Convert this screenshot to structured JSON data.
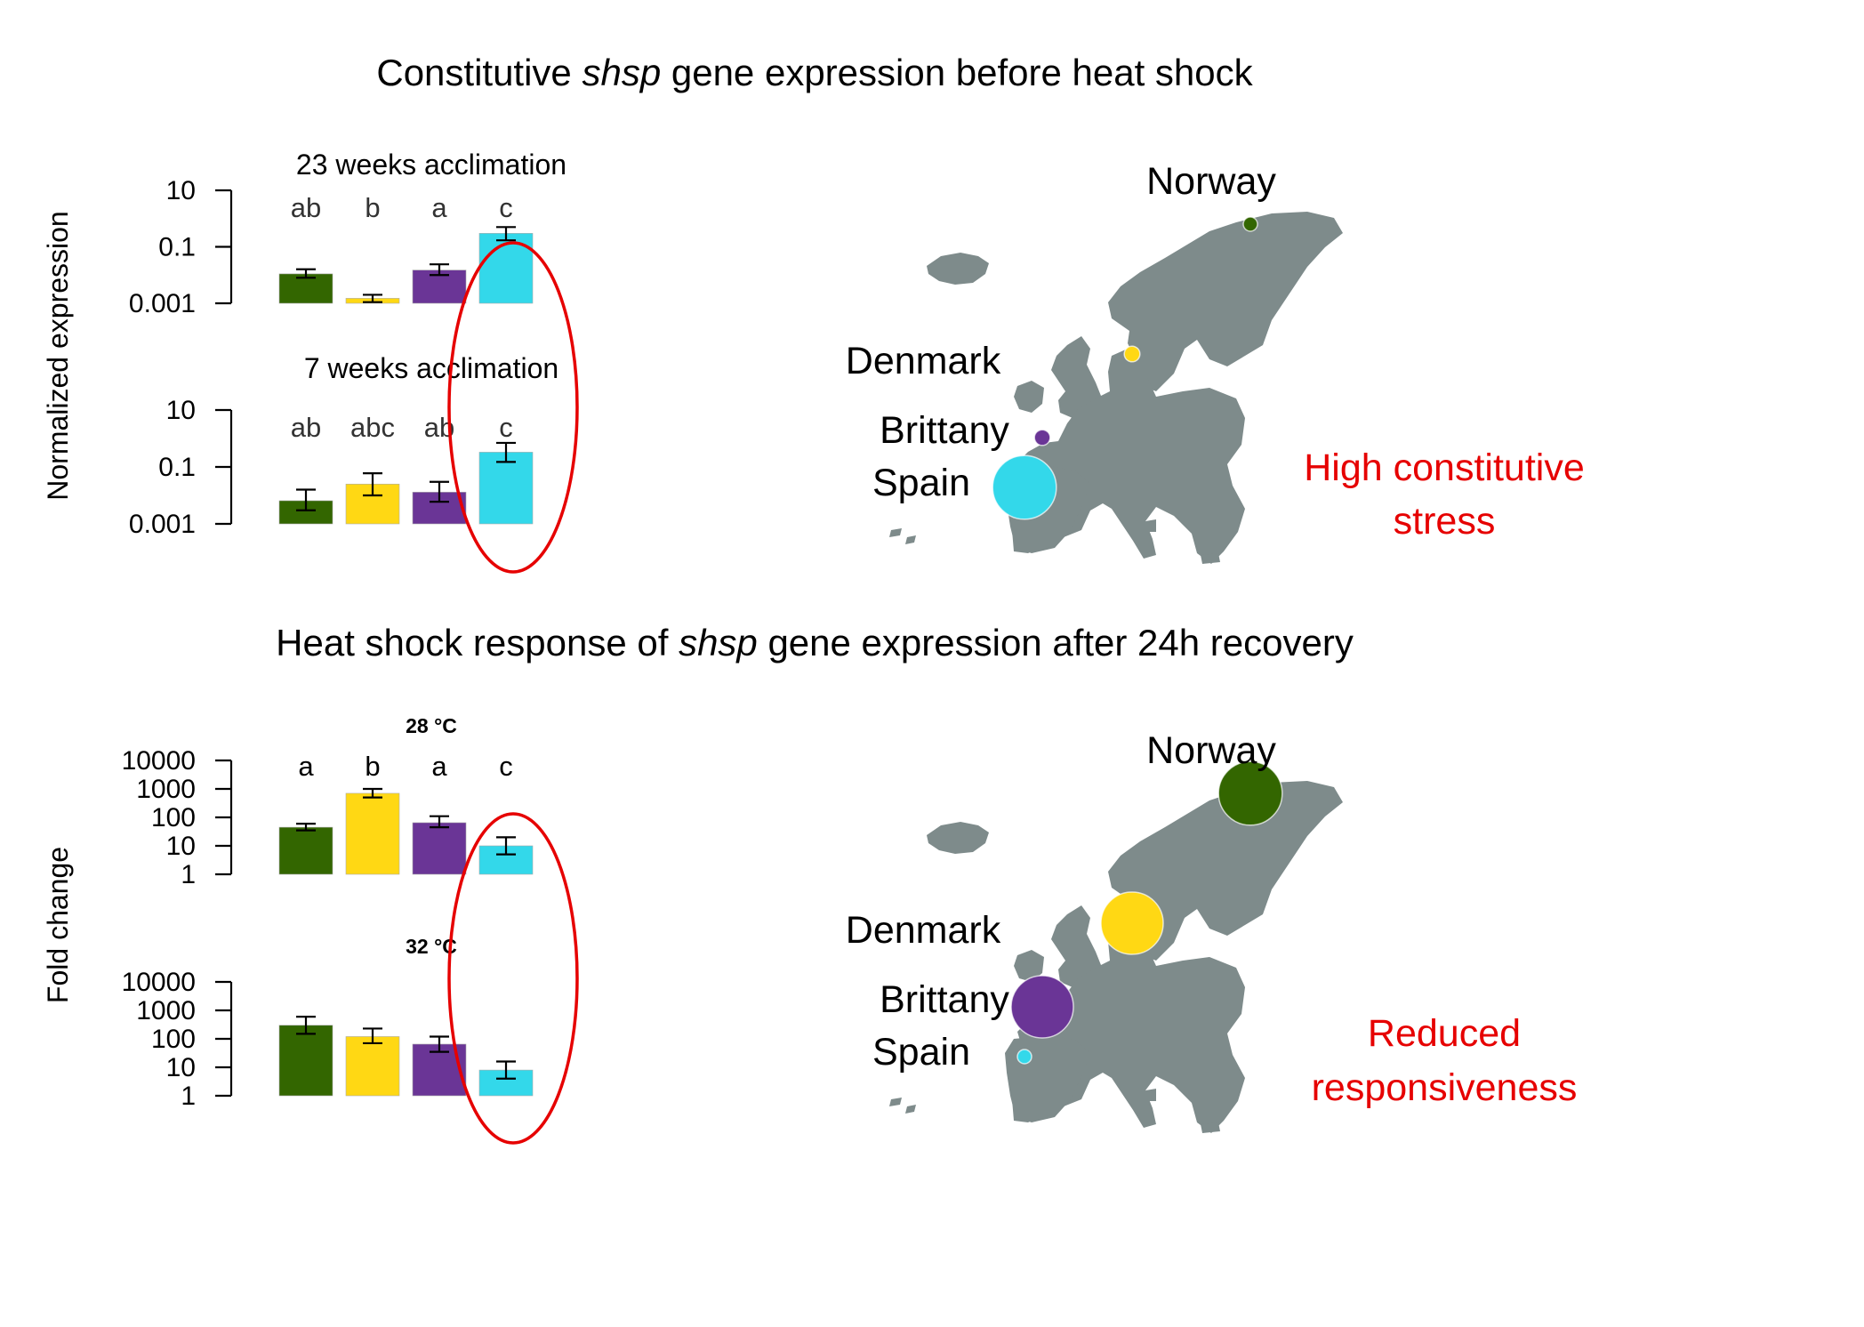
{
  "titles": {
    "top_pre": "Constitutive ",
    "top_italic": "shsp",
    "top_post": " gene expression before heat shock",
    "bottom_pre": "Heat shock response of ",
    "bottom_italic": "shsp",
    "bottom_post": " gene expression after 24h recovery"
  },
  "ylabels": {
    "top": "Normalized expression",
    "bottom": "Fold change"
  },
  "colors": {
    "Norway": "#336600",
    "Denmark": "#ffd814",
    "Brittany": "#6a3596",
    "Spain": "#33d8ea",
    "highlight": "#e60000",
    "map_land": "#7e8b8b"
  },
  "populations": [
    "Norway",
    "Denmark",
    "Brittany",
    "Spain"
  ],
  "annotations": {
    "top_line1": "High constitutive",
    "top_line2": "stress",
    "bottom_line1": "Reduced",
    "bottom_line2": "responsiveness"
  },
  "map_labels": {
    "norway": "Norway",
    "denmark": "Denmark",
    "brittany": "Brittany",
    "spain": "Spain"
  },
  "map_bubbles": {
    "top": {
      "Norway": 1,
      "Denmark": 1.1,
      "Brittany": 1.1,
      "Spain": 3.6
    },
    "bottom": {
      "Norway": 3.6,
      "Denmark": 3.5,
      "Brittany": 3.5,
      "Spain": 1
    }
  },
  "chart_data": [
    {
      "type": "bar",
      "title": "23 weeks acclimation",
      "categories": [
        "Norway",
        "Denmark",
        "Brittany",
        "Spain"
      ],
      "values": [
        0.011,
        0.0015,
        0.015,
        0.3
      ],
      "error_low": [
        0.008,
        0.0011,
        0.01,
        0.17
      ],
      "error_high": [
        0.016,
        0.002,
        0.024,
        0.5
      ],
      "letters": [
        "ab",
        "b",
        "a",
        "c"
      ],
      "yscale": "log",
      "ylim": [
        0.001,
        10
      ],
      "yticks": [
        "10",
        "0.1",
        "0.001"
      ],
      "ylabel": "Normalized expression"
    },
    {
      "type": "bar",
      "title": "7 weeks acclimation",
      "categories": [
        "Norway",
        "Denmark",
        "Brittany",
        "Spain"
      ],
      "values": [
        0.0065,
        0.025,
        0.013,
        0.33
      ],
      "error_low": [
        0.003,
        0.01,
        0.006,
        0.15
      ],
      "error_high": [
        0.016,
        0.06,
        0.03,
        0.7
      ],
      "letters": [
        "ab",
        "abc",
        "ab",
        "c"
      ],
      "yscale": "log",
      "ylim": [
        0.001,
        10
      ],
      "yticks": [
        "10",
        "0.1",
        "0.001"
      ],
      "ylabel": "Normalized expression"
    },
    {
      "type": "bar",
      "title": "28 °C",
      "categories": [
        "Norway",
        "Denmark",
        "Brittany",
        "Spain"
      ],
      "values": [
        45,
        700,
        65,
        10
      ],
      "error_low": [
        35,
        500,
        45,
        5
      ],
      "error_high": [
        60,
        1000,
        110,
        20
      ],
      "letters": [
        "a",
        "b",
        "a",
        "c"
      ],
      "yscale": "log",
      "ylim": [
        1,
        10000
      ],
      "yticks": [
        "10000",
        "1000",
        "100",
        "10",
        "1"
      ],
      "ylabel": "Fold change"
    },
    {
      "type": "bar",
      "title": "32 °C",
      "categories": [
        "Norway",
        "Denmark",
        "Brittany",
        "Spain"
      ],
      "values": [
        300,
        120,
        65,
        8
      ],
      "error_low": [
        150,
        70,
        35,
        4
      ],
      "error_high": [
        600,
        230,
        120,
        16
      ],
      "letters": [
        "",
        "",
        "",
        ""
      ],
      "yscale": "log",
      "ylim": [
        1,
        10000
      ],
      "yticks": [
        "10000",
        "1000",
        "100",
        "10",
        "1"
      ],
      "ylabel": "Fold change"
    }
  ]
}
